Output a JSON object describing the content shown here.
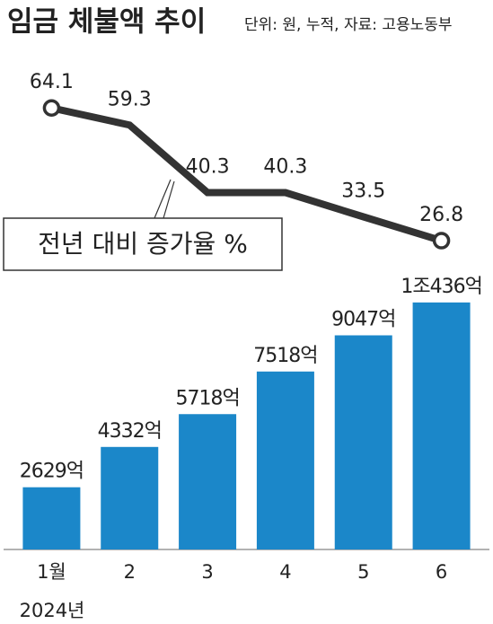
{
  "chart_data": {
    "type": "bar",
    "title": "임금 체불액 추이",
    "subtitle": "단위: 원, 누적, 자료: 고용노동부",
    "categories": [
      "1월",
      "2",
      "3",
      "4",
      "5",
      "6"
    ],
    "year_label": "2024년",
    "series": [
      {
        "type": "bar",
        "color": "#1b87c9",
        "values": [
          2629,
          4332,
          5718,
          7518,
          9047,
          10436
        ],
        "value_labels": [
          "2629억",
          "4332억",
          "5718억",
          "7518억",
          "9047억",
          "1조436억"
        ]
      },
      {
        "type": "line",
        "axis": "y2",
        "name": "전년 대비 증가율 %",
        "color": "#333333",
        "values": [
          64.1,
          59.3,
          40.3,
          40.3,
          33.5,
          26.8
        ]
      }
    ],
    "ylim": [
      0,
      11000
    ],
    "y2lim": [
      20,
      74
    ]
  }
}
